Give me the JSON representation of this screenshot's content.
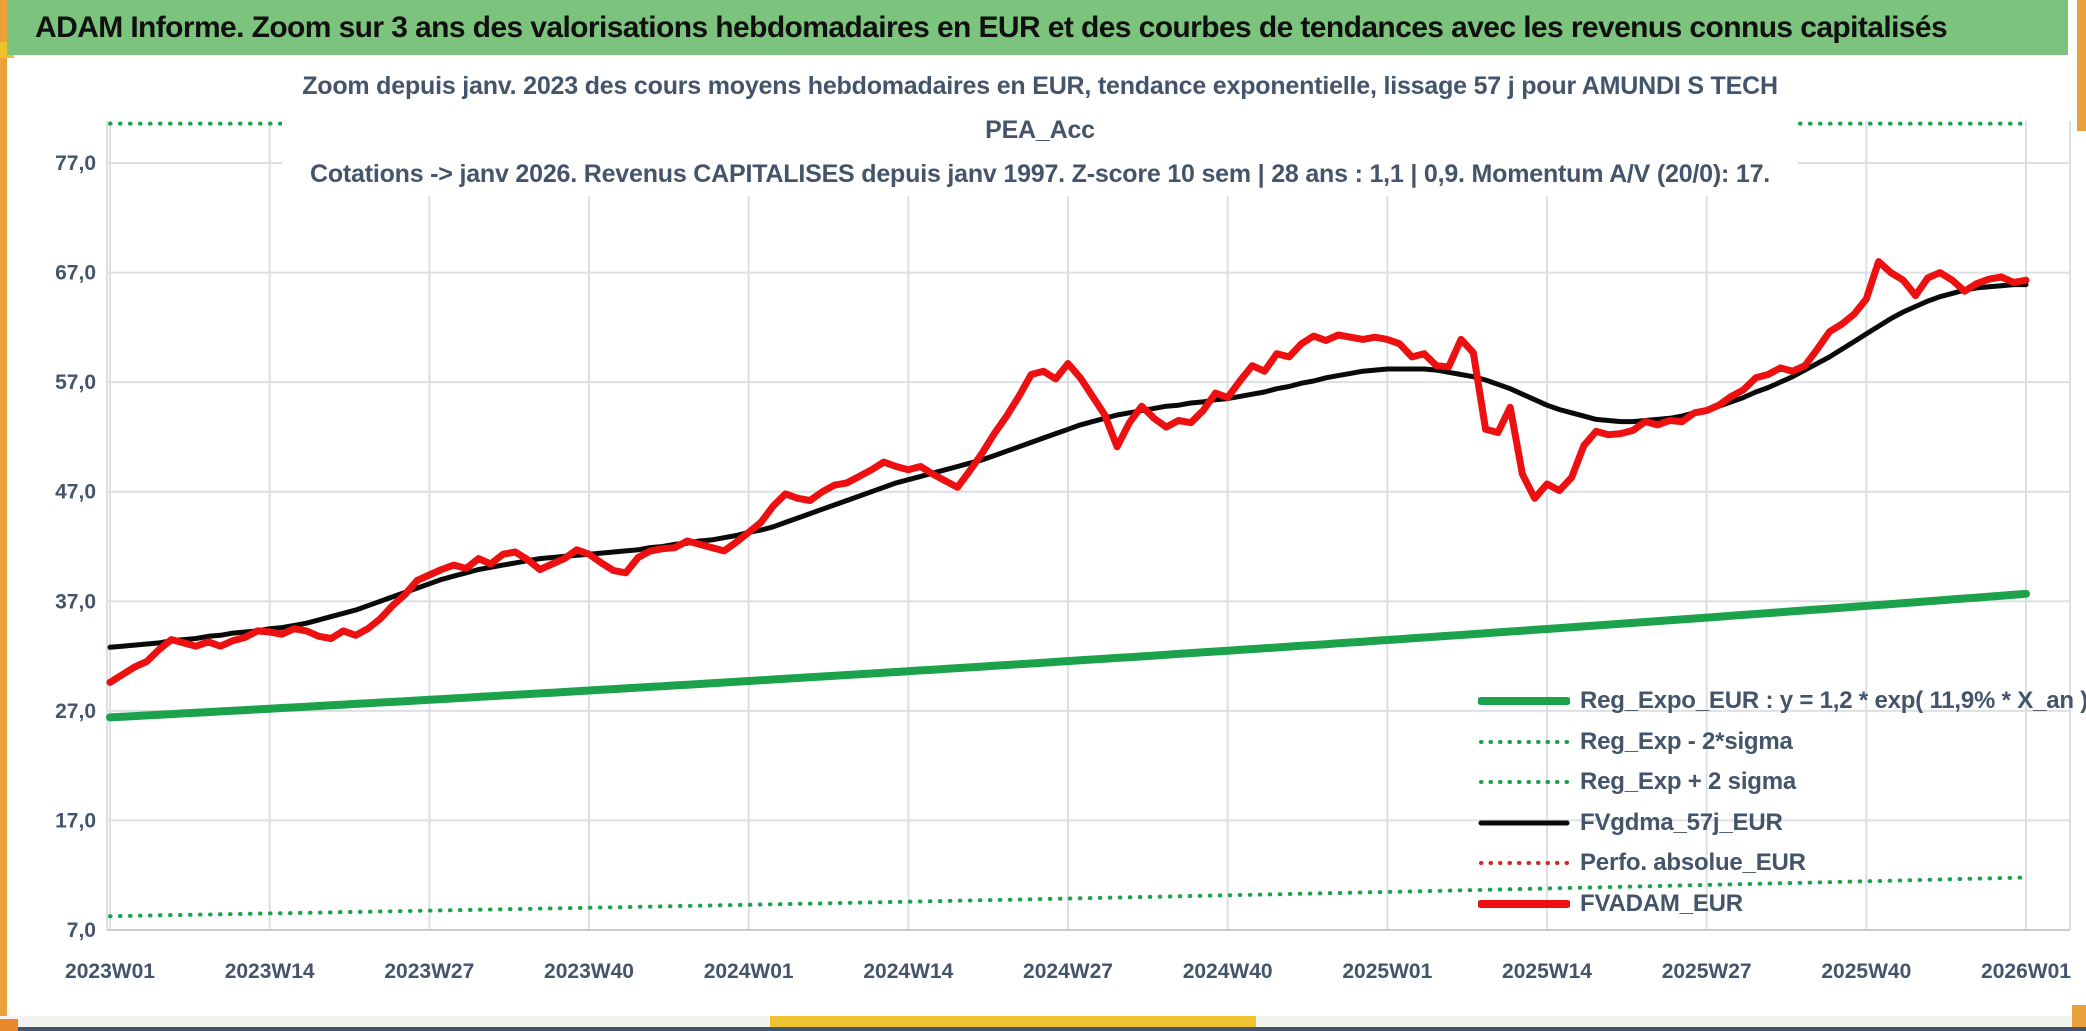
{
  "frame": {
    "topbar_bg": "#7CC47D",
    "accent_orange": "#E9A23B",
    "accent_yellow": "#EFC230",
    "corner_orange": "#E9872B",
    "hairline_color": "#44546A"
  },
  "header": {
    "title": "ADAM Informe. Zoom sur 3 ans des valorisations hebdomadaires en EUR et des courbes de tendances avec les revenus connus capitalisés"
  },
  "chart_data": {
    "type": "line",
    "title_line1": "Zoom depuis janv. 2023 des cours moyens hebdomadaires en EUR, tendance exponentielle, lissage 57 j pour AMUNDI S TECH PEA_Acc",
    "title_line2": "Cotations -> janv 2026. Revenus CAPITALISES depuis janv 1997. Z-score 10 sem | 28 ans : 1,1 | 0,9. Momentum A/V (20/0): 17.",
    "title_color": "#44546A",
    "grid_color": "#DCE0E4",
    "axis_label_color": "#44546A",
    "x_tick_labels": [
      "2023W01",
      "2023W14",
      "2023W27",
      "2023W40",
      "2024W01",
      "2024W14",
      "2024W27",
      "2024W40",
      "2025W01",
      "2025W14",
      "2025W27",
      "2025W40",
      "2026W01"
    ],
    "x_tick_weeks": [
      0,
      13,
      26,
      39,
      52,
      65,
      78,
      91,
      104,
      117,
      130,
      143,
      156
    ],
    "weeks_total": 156,
    "y_tick_values": [
      77,
      67,
      57,
      47,
      37,
      27,
      17,
      7
    ],
    "y_tick_labels": [
      "77,0",
      "67,0",
      "57,0",
      "47,0",
      "37,0",
      "27,0",
      "17,0",
      "7,0"
    ],
    "y_axis_min": 7,
    "y_axis_clip_top": 80.6,
    "regression": {
      "equation_display": "y = 1,2 * exp( 11,9% *  X_an )",
      "value_at_2023W01": 26.4,
      "annual_rate_pct": 11.9,
      "minus2sigma_factor": 0.313,
      "plus2sigma_factor": 3.196
    },
    "series": [
      {
        "id": "plus2sigma",
        "name": "Reg_Exp + 2 sigma",
        "color": "#1CA24B",
        "style": "dotted",
        "width": 4
      },
      {
        "id": "minus2sigma",
        "name": "Reg_Exp - 2*sigma",
        "color": "#1CA24B",
        "style": "dotted",
        "width": 4
      },
      {
        "id": "reg",
        "name": "Reg_Expo_EUR",
        "color": "#1CA24B",
        "style": "solid",
        "width": 8
      },
      {
        "id": "perfo",
        "name": "Perfo. absolue_EUR",
        "color": "#D42A20",
        "style": "dotted",
        "width": 4,
        "note": "overlaps FVADAM_EUR"
      },
      {
        "id": "fvgdma",
        "name": "FVgdma_57j_EUR",
        "color": "#0A0A0A",
        "style": "solid",
        "width": 5,
        "values": [
          32.8,
          32.9,
          33.0,
          33.1,
          33.2,
          33.4,
          33.5,
          33.6,
          33.8,
          33.9,
          34.1,
          34.2,
          34.3,
          34.5,
          34.6,
          34.8,
          35.0,
          35.3,
          35.6,
          35.9,
          36.2,
          36.6,
          37.0,
          37.4,
          37.8,
          38.2,
          38.6,
          39.0,
          39.3,
          39.6,
          39.9,
          40.1,
          40.3,
          40.5,
          40.7,
          40.9,
          41.0,
          41.1,
          41.2,
          41.3,
          41.4,
          41.5,
          41.6,
          41.7,
          41.9,
          42.0,
          42.2,
          42.3,
          42.5,
          42.6,
          42.8,
          43.0,
          43.3,
          43.5,
          43.8,
          44.2,
          44.6,
          45.0,
          45.4,
          45.8,
          46.2,
          46.6,
          47.0,
          47.4,
          47.8,
          48.1,
          48.4,
          48.7,
          49.0,
          49.3,
          49.6,
          49.9,
          50.3,
          50.7,
          51.1,
          51.5,
          51.9,
          52.3,
          52.7,
          53.1,
          53.4,
          53.7,
          54.0,
          54.2,
          54.4,
          54.6,
          54.8,
          54.9,
          55.1,
          55.2,
          55.4,
          55.5,
          55.7,
          55.9,
          56.1,
          56.4,
          56.6,
          56.9,
          57.1,
          57.4,
          57.6,
          57.8,
          58.0,
          58.1,
          58.2,
          58.2,
          58.2,
          58.2,
          58.1,
          57.9,
          57.7,
          57.5,
          57.2,
          56.8,
          56.4,
          55.9,
          55.4,
          54.9,
          54.5,
          54.2,
          53.9,
          53.6,
          53.5,
          53.4,
          53.4,
          53.5,
          53.6,
          53.7,
          53.9,
          54.2,
          54.5,
          54.8,
          55.2,
          55.6,
          56.1,
          56.5,
          57.0,
          57.5,
          58.1,
          58.7,
          59.3,
          60.0,
          60.7,
          61.4,
          62.1,
          62.8,
          63.4,
          63.9,
          64.4,
          64.8,
          65.1,
          65.4,
          65.6,
          65.7,
          65.8,
          65.9,
          65.9
        ]
      },
      {
        "id": "fvadam",
        "name": "FVADAM_EUR",
        "color": "#ED1010",
        "style": "solid",
        "width": 7,
        "values": [
          29.6,
          30.3,
          31.0,
          31.5,
          32.6,
          33.5,
          33.2,
          32.9,
          33.3,
          32.9,
          33.4,
          33.7,
          34.3,
          34.2,
          34.0,
          34.5,
          34.3,
          33.8,
          33.6,
          34.3,
          33.9,
          34.5,
          35.4,
          36.6,
          37.6,
          38.9,
          39.4,
          39.9,
          40.3,
          40.0,
          40.9,
          40.4,
          41.3,
          41.5,
          40.8,
          39.9,
          40.4,
          40.9,
          41.7,
          41.3,
          40.5,
          39.8,
          39.6,
          41.0,
          41.6,
          41.8,
          41.9,
          42.5,
          42.2,
          41.9,
          41.6,
          42.4,
          43.3,
          44.2,
          45.7,
          46.8,
          46.4,
          46.2,
          47.0,
          47.6,
          47.8,
          48.4,
          49.0,
          49.7,
          49.3,
          49.0,
          49.3,
          48.6,
          48.0,
          47.4,
          48.9,
          50.5,
          52.3,
          53.9,
          55.7,
          57.7,
          58.0,
          57.3,
          58.7,
          57.4,
          55.7,
          54.0,
          51.1,
          53.3,
          54.8,
          53.7,
          52.9,
          53.5,
          53.3,
          54.4,
          56.0,
          55.6,
          57.1,
          58.5,
          58.0,
          59.6,
          59.3,
          60.5,
          61.2,
          60.8,
          61.3,
          61.1,
          60.9,
          61.1,
          60.9,
          60.5,
          59.3,
          59.6,
          58.5,
          58.4,
          60.9,
          59.7,
          52.7,
          52.4,
          54.7,
          48.6,
          46.4,
          47.7,
          47.1,
          48.3,
          51.2,
          52.5,
          52.2,
          52.3,
          52.6,
          53.4,
          53.1,
          53.5,
          53.4,
          54.2,
          54.4,
          54.9,
          55.7,
          56.3,
          57.4,
          57.7,
          58.3,
          58.0,
          58.5,
          60.0,
          61.6,
          62.3,
          63.2,
          64.6,
          68.0,
          67.0,
          66.3,
          64.9,
          66.5,
          67.0,
          66.3,
          65.3,
          66.0,
          66.4,
          66.6,
          66.1,
          66.3
        ]
      }
    ],
    "legend": {
      "position": "bottom-right-inside",
      "entries": [
        {
          "label": "Reg_Expo_EUR : y = 1,2 * exp( 11,9% *  X_an )",
          "color": "#1CA24B",
          "style": "solid",
          "width": 8
        },
        {
          "label": "Reg_Exp - 2*sigma",
          "color": "#1CA24B",
          "style": "dotted",
          "width": 4
        },
        {
          "label": "Reg_Exp + 2 sigma",
          "color": "#1CA24B",
          "style": "dotted",
          "width": 4
        },
        {
          "label": "FVgdma_57j_EUR",
          "color": "#0A0A0A",
          "style": "solid",
          "width": 5
        },
        {
          "label": "Perfo. absolue_EUR",
          "color": "#D42A20",
          "style": "dotted",
          "width": 4
        },
        {
          "label": "FVADAM_EUR",
          "color": "#ED1010",
          "style": "solid",
          "width": 8
        }
      ]
    }
  }
}
